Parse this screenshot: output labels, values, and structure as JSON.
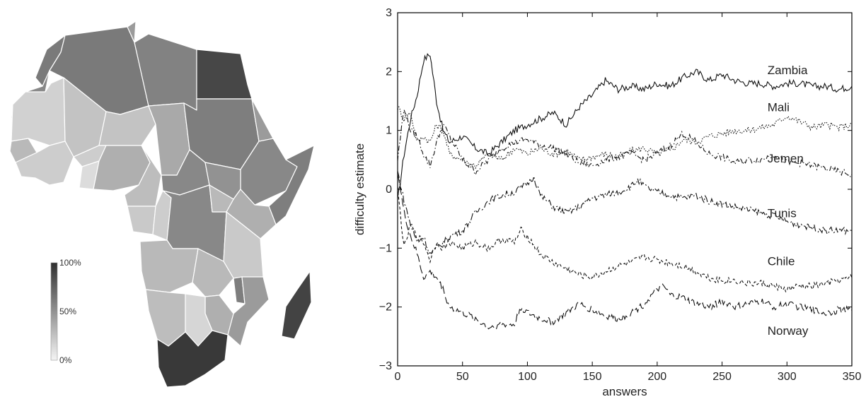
{
  "map": {
    "colorbar": {
      "labels": [
        "100%",
        "50%",
        "0%"
      ],
      "color_high": "#2f2f2f",
      "color_low": "#f4f4f4"
    },
    "regions": [
      {
        "name": "Morocco",
        "share": 0.62
      },
      {
        "name": "Western Sahara",
        "share": 0.55
      },
      {
        "name": "Algeria",
        "share": 0.62
      },
      {
        "name": "Libya",
        "share": 0.58
      },
      {
        "name": "Egypt",
        "share": 0.88
      },
      {
        "name": "Tunisia",
        "share": 0.45
      },
      {
        "name": "Mauritania",
        "share": 0.18
      },
      {
        "name": "Mali",
        "share": 0.25
      },
      {
        "name": "Niger",
        "share": 0.25
      },
      {
        "name": "Chad",
        "share": 0.38
      },
      {
        "name": "Sudan",
        "share": 0.6
      },
      {
        "name": "Ethiopia",
        "share": 0.55
      },
      {
        "name": "Somalia",
        "share": 0.6
      },
      {
        "name": "Eritrea",
        "share": 0.45
      },
      {
        "name": "Senegal",
        "share": 0.3
      },
      {
        "name": "Guinea",
        "share": 0.2
      },
      {
        "name": "Burkina Faso",
        "share": 0.2
      },
      {
        "name": "Ghana",
        "share": 0.12
      },
      {
        "name": "Nigeria",
        "share": 0.35
      },
      {
        "name": "Cameroon",
        "share": 0.28
      },
      {
        "name": "Central African Republic",
        "share": 0.55
      },
      {
        "name": "South Sudan",
        "share": 0.5
      },
      {
        "name": "Kenya",
        "share": 0.35
      },
      {
        "name": "Gabon",
        "share": 0.22
      },
      {
        "name": "Congo",
        "share": 0.2
      },
      {
        "name": "DR Congo",
        "share": 0.55
      },
      {
        "name": "Uganda",
        "share": 0.3
      },
      {
        "name": "Tanzania",
        "share": 0.22
      },
      {
        "name": "Angola",
        "share": 0.3
      },
      {
        "name": "Zambia",
        "share": 0.3
      },
      {
        "name": "Malawi",
        "share": 0.6
      },
      {
        "name": "Mozambique",
        "share": 0.45
      },
      {
        "name": "Zimbabwe",
        "share": 0.35
      },
      {
        "name": "Namibia",
        "share": 0.28
      },
      {
        "name": "Botswana",
        "share": 0.15
      },
      {
        "name": "South Africa",
        "share": 0.95
      },
      {
        "name": "Madagascar",
        "share": 0.9
      }
    ]
  },
  "chart_data": {
    "type": "line",
    "xlabel": "answers",
    "ylabel": "difficulty estimate",
    "xlim": [
      0,
      350
    ],
    "ylim": [
      -3,
      3
    ],
    "xticks": [
      0,
      50,
      100,
      150,
      200,
      250,
      300,
      350
    ],
    "yticks": [
      3,
      2,
      1,
      0,
      -1,
      -2,
      -3
    ],
    "grid": false,
    "series": [
      {
        "name": "Zambia",
        "line_style": "solid",
        "x": [
          0,
          5,
          10,
          15,
          20,
          25,
          30,
          35,
          40,
          50,
          60,
          70,
          80,
          90,
          100,
          110,
          120,
          130,
          140,
          150,
          160,
          170,
          180,
          190,
          200,
          210,
          220,
          230,
          240,
          250,
          260,
          270,
          280,
          290,
          300,
          310,
          320,
          330,
          340,
          350
        ],
        "y": [
          -0.2,
          0.6,
          1.2,
          1.6,
          2.2,
          2.3,
          1.5,
          1.0,
          0.8,
          0.9,
          0.7,
          0.6,
          0.8,
          1.0,
          1.1,
          1.2,
          1.3,
          1.1,
          1.4,
          1.6,
          1.85,
          1.7,
          1.75,
          1.7,
          1.8,
          1.75,
          1.9,
          2.0,
          1.85,
          1.95,
          1.85,
          1.8,
          1.8,
          1.75,
          1.8,
          1.8,
          1.75,
          1.75,
          1.7,
          1.75
        ]
      },
      {
        "name": "Mali",
        "line_style": "dotted",
        "x": [
          0,
          5,
          10,
          15,
          20,
          25,
          30,
          35,
          40,
          50,
          60,
          70,
          80,
          90,
          100,
          110,
          120,
          130,
          140,
          150,
          160,
          170,
          180,
          190,
          200,
          210,
          220,
          230,
          240,
          250,
          260,
          270,
          280,
          290,
          300,
          310,
          320,
          330,
          340,
          350
        ],
        "y": [
          1.4,
          1.2,
          1.3,
          0.8,
          0.9,
          0.8,
          1.1,
          1.0,
          0.6,
          0.5,
          0.4,
          0.6,
          0.5,
          0.7,
          0.6,
          0.7,
          0.6,
          0.65,
          0.5,
          0.55,
          0.6,
          0.55,
          0.65,
          0.7,
          0.6,
          0.65,
          0.85,
          0.8,
          0.9,
          0.95,
          1.0,
          1.0,
          1.05,
          1.1,
          1.25,
          1.15,
          1.05,
          1.1,
          1.05,
          1.1
        ]
      },
      {
        "name": "Jemen",
        "line_style": "dashdot",
        "x": [
          0,
          5,
          10,
          15,
          20,
          25,
          30,
          35,
          40,
          50,
          60,
          70,
          80,
          90,
          100,
          110,
          120,
          130,
          140,
          150,
          160,
          170,
          180,
          190,
          200,
          210,
          220,
          230,
          240,
          250,
          260,
          270,
          280,
          290,
          300,
          310,
          320,
          330,
          340,
          350
        ],
        "y": [
          0.5,
          1.4,
          1.0,
          0.9,
          0.6,
          0.4,
          0.8,
          1.1,
          0.9,
          0.5,
          0.3,
          0.5,
          0.7,
          0.8,
          0.85,
          0.75,
          0.7,
          0.6,
          0.45,
          0.4,
          0.5,
          0.55,
          0.6,
          0.5,
          0.6,
          0.75,
          0.95,
          0.8,
          0.6,
          0.55,
          0.45,
          0.5,
          0.5,
          0.6,
          0.45,
          0.45,
          0.4,
          0.35,
          0.3,
          0.25
        ]
      },
      {
        "name": "Tunis",
        "line_style": "dash-dot-long",
        "x": [
          0,
          5,
          10,
          15,
          20,
          25,
          30,
          35,
          40,
          50,
          60,
          70,
          80,
          90,
          100,
          105,
          110,
          120,
          130,
          140,
          150,
          160,
          170,
          180,
          185,
          190,
          200,
          210,
          220,
          230,
          240,
          250,
          260,
          270,
          280,
          290,
          300,
          310,
          320,
          330,
          340,
          350
        ],
        "y": [
          0.3,
          -0.2,
          -0.6,
          -0.9,
          -0.8,
          -1.1,
          -1.0,
          -0.9,
          -0.8,
          -0.7,
          -0.4,
          -0.2,
          -0.1,
          -0.05,
          0.1,
          0.22,
          -0.1,
          -0.3,
          -0.4,
          -0.3,
          -0.15,
          -0.1,
          -0.05,
          0.05,
          0.15,
          0.05,
          -0.05,
          -0.1,
          -0.15,
          -0.1,
          -0.2,
          -0.25,
          -0.3,
          -0.35,
          -0.4,
          -0.45,
          -0.55,
          -0.6,
          -0.65,
          -0.7,
          -0.7,
          -0.7
        ]
      },
      {
        "name": "Chile",
        "line_style": "short-dash",
        "x": [
          0,
          5,
          10,
          15,
          20,
          25,
          30,
          35,
          40,
          50,
          60,
          70,
          80,
          90,
          95,
          100,
          110,
          120,
          130,
          140,
          150,
          160,
          170,
          180,
          190,
          200,
          210,
          220,
          230,
          240,
          250,
          260,
          270,
          280,
          290,
          300,
          310,
          320,
          330,
          340,
          350
        ],
        "y": [
          0.0,
          -1.0,
          -0.6,
          -0.8,
          -0.9,
          -1.2,
          -0.9,
          -1.0,
          -0.9,
          -1.0,
          -0.9,
          -1.0,
          -0.85,
          -0.9,
          -0.7,
          -0.8,
          -1.1,
          -1.25,
          -1.35,
          -1.45,
          -1.5,
          -1.4,
          -1.3,
          -1.25,
          -1.15,
          -1.2,
          -1.25,
          -1.3,
          -1.4,
          -1.5,
          -1.55,
          -1.55,
          -1.6,
          -1.6,
          -1.65,
          -1.7,
          -1.65,
          -1.65,
          -1.6,
          -1.55,
          -1.5
        ]
      },
      {
        "name": "Norway",
        "line_style": "long-dash",
        "x": [
          0,
          5,
          10,
          15,
          20,
          25,
          30,
          35,
          40,
          50,
          60,
          70,
          80,
          90,
          95,
          100,
          110,
          120,
          130,
          140,
          150,
          160,
          170,
          180,
          190,
          200,
          205,
          210,
          220,
          230,
          240,
          250,
          260,
          270,
          280,
          290,
          300,
          310,
          320,
          330,
          340,
          350
        ],
        "y": [
          0.3,
          -0.4,
          -0.8,
          -1.1,
          -1.5,
          -1.4,
          -1.5,
          -1.7,
          -2.0,
          -2.1,
          -2.2,
          -2.35,
          -2.3,
          -2.3,
          -2.0,
          -2.1,
          -2.2,
          -2.25,
          -2.1,
          -1.95,
          -2.05,
          -2.15,
          -2.2,
          -2.1,
          -1.95,
          -1.7,
          -1.65,
          -1.8,
          -1.85,
          -1.95,
          -2.0,
          -1.9,
          -2.0,
          -1.95,
          -1.9,
          -2.0,
          -1.95,
          -2.0,
          -2.05,
          -2.1,
          -2.05,
          -2.05
        ]
      }
    ],
    "annotations": [
      {
        "text": "Zambia",
        "series": "Zambia"
      },
      {
        "text": "Mali",
        "series": "Mali"
      },
      {
        "text": "Jemen",
        "series": "Jemen"
      },
      {
        "text": "Tunis",
        "series": "Tunis"
      },
      {
        "text": "Chile",
        "series": "Chile"
      },
      {
        "text": "Norway",
        "series": "Norway"
      }
    ]
  }
}
